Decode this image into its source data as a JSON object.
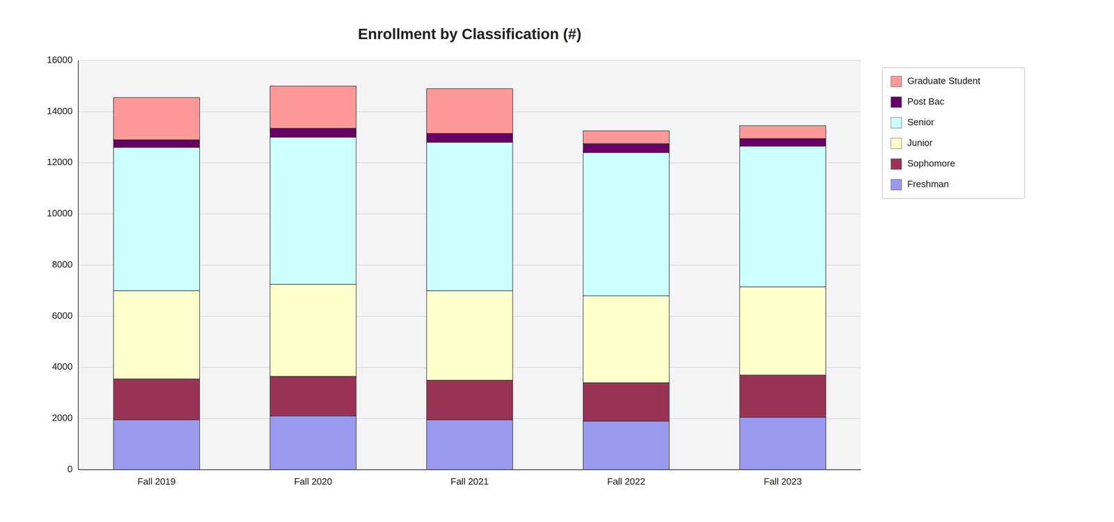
{
  "chart_data": {
    "type": "bar",
    "title": "Enrollment by Classification (#)",
    "categories": [
      "Fall 2019",
      "Fall 2020",
      "Fall 2021",
      "Fall 2022",
      "Fall 2023"
    ],
    "series": [
      {
        "name": "Freshman",
        "values": [
          1950,
          2100,
          1950,
          1900,
          2050
        ],
        "color": "#9999EE"
      },
      {
        "name": "Sophomore",
        "values": [
          1600,
          1550,
          1550,
          1500,
          1650
        ],
        "color": "#993355"
      },
      {
        "name": "Junior",
        "values": [
          3450,
          3600,
          3500,
          3400,
          3450
        ],
        "color": "#FFFFCC"
      },
      {
        "name": "Senior",
        "values": [
          5600,
          5750,
          5800,
          5600,
          5500
        ],
        "color": "#CCFFFF"
      },
      {
        "name": "Post Bac",
        "values": [
          300,
          350,
          350,
          350,
          300
        ],
        "color": "#660066"
      },
      {
        "name": "Graduate Student",
        "values": [
          1650,
          1650,
          1750,
          500,
          500
        ],
        "color": "#FF9999"
      }
    ],
    "ylim": [
      0,
      16000
    ],
    "yticks": [
      0,
      2000,
      4000,
      6000,
      8000,
      10000,
      12000,
      14000,
      16000
    ],
    "stacked": true,
    "grid": true,
    "legend": "right"
  }
}
